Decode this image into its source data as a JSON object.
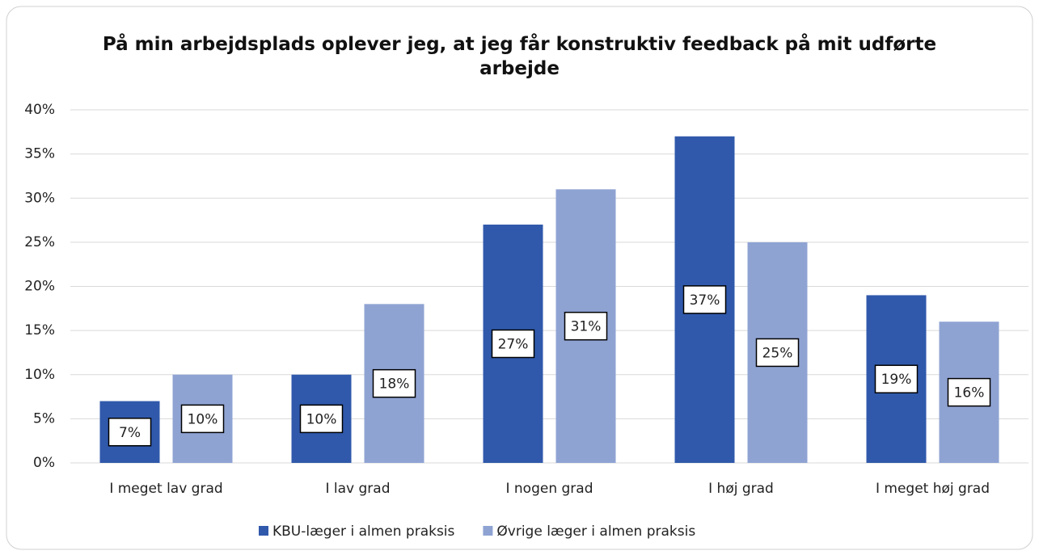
{
  "chart_data": {
    "type": "bar",
    "title": "På min arbejdsplads oplever jeg, at jeg får konstruktiv feedback på mit udførte arbejde",
    "categories": [
      "I meget lav grad",
      "I lav grad",
      "I nogen grad",
      "I høj grad",
      "I meget høj grad"
    ],
    "series": [
      {
        "name": "KBU-læger i almen praksis",
        "color": "#3059ab",
        "values": [
          7,
          10,
          27,
          37,
          19
        ],
        "value_labels": [
          "7%",
          "10%",
          "27%",
          "37%",
          "19%"
        ]
      },
      {
        "name": "Øvrige læger i almen praksis",
        "color": "#8fa3d3",
        "values": [
          10,
          18,
          31,
          25,
          16
        ],
        "value_labels": [
          "10%",
          "18%",
          "31%",
          "25%",
          "16%"
        ]
      }
    ],
    "ylim": [
      0,
      40
    ],
    "yticks": [
      {
        "value": 0,
        "label": "0%"
      },
      {
        "value": 5,
        "label": "5%"
      },
      {
        "value": 10,
        "label": "10%"
      },
      {
        "value": 15,
        "label": "15%"
      },
      {
        "value": 20,
        "label": "20%"
      },
      {
        "value": 25,
        "label": "25%"
      },
      {
        "value": 30,
        "label": "30%"
      },
      {
        "value": 35,
        "label": "35%"
      },
      {
        "value": 40,
        "label": "40%"
      }
    ],
    "grid": true,
    "legend": "bottom"
  }
}
